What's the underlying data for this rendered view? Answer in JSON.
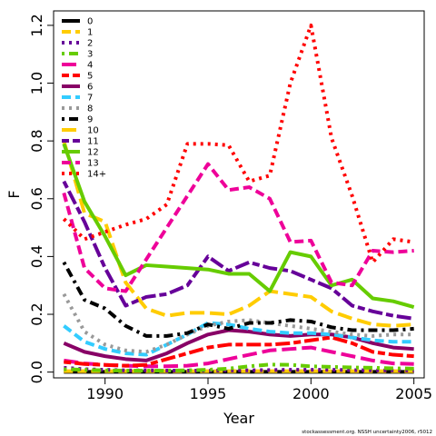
{
  "chart_data": {
    "type": "line",
    "xlabel": "Year",
    "ylabel": "F",
    "xlim": [
      1987.5,
      2005.5
    ],
    "ylim": [
      -0.02,
      1.25
    ],
    "xticks": [
      1990,
      1995,
      2000,
      2005
    ],
    "yticks": [
      0.0,
      0.2,
      0.4,
      0.6,
      0.8,
      1.0,
      1.2
    ],
    "ytick_labels": [
      "0.0",
      "0.2",
      "0.4",
      "0.6",
      "0.8",
      "1.0",
      "1.2"
    ],
    "legend_position": "top-left",
    "credit": "stockassessment.org. NSSH uncertainty2006, r5012",
    "x": [
      1988,
      1989,
      1990,
      1991,
      1992,
      1993,
      1994,
      1995,
      1996,
      1997,
      1998,
      1999,
      2000,
      2001,
      2002,
      2003,
      2004,
      2005
    ],
    "series": [
      {
        "name": "0",
        "color": "#000000",
        "dash": "solid",
        "values": [
          0.001,
          0.001,
          0.001,
          0.001,
          0.001,
          0.001,
          0.001,
          0.001,
          0.001,
          0.001,
          0.001,
          0.001,
          0.001,
          0.001,
          0.001,
          0.001,
          0.001,
          0.001
        ]
      },
      {
        "name": "1",
        "color": "#FFCC00",
        "dash": "dash",
        "values": [
          0.003,
          0.003,
          0.003,
          0.003,
          0.003,
          0.003,
          0.003,
          0.003,
          0.003,
          0.003,
          0.003,
          0.003,
          0.003,
          0.003,
          0.003,
          0.003,
          0.003,
          0.003
        ]
      },
      {
        "name": "2",
        "color": "#660099",
        "dash": "dot",
        "values": [
          0.015,
          0.01,
          0.008,
          0.006,
          0.006,
          0.005,
          0.005,
          0.005,
          0.006,
          0.006,
          0.007,
          0.008,
          0.008,
          0.008,
          0.007,
          0.006,
          0.006,
          0.006
        ]
      },
      {
        "name": "3",
        "color": "#66CC00",
        "dash": "dotdash",
        "values": [
          0.01,
          0.008,
          0.006,
          0.005,
          0.005,
          0.005,
          0.006,
          0.008,
          0.012,
          0.02,
          0.026,
          0.025,
          0.02,
          0.018,
          0.016,
          0.015,
          0.013,
          0.012
        ]
      },
      {
        "name": "4",
        "color": "#EE0099",
        "dash": "longdash",
        "values": [
          0.04,
          0.03,
          0.025,
          0.022,
          0.02,
          0.02,
          0.022,
          0.03,
          0.045,
          0.06,
          0.075,
          0.08,
          0.085,
          0.07,
          0.055,
          0.04,
          0.03,
          0.028
        ]
      },
      {
        "name": "5",
        "color": "#FF0000",
        "dash": "twodash",
        "values": [
          0.035,
          0.028,
          0.025,
          0.022,
          0.025,
          0.045,
          0.065,
          0.085,
          0.095,
          0.095,
          0.095,
          0.1,
          0.11,
          0.12,
          0.1,
          0.07,
          0.06,
          0.055
        ]
      },
      {
        "name": "6",
        "color": "#880066",
        "dash": "solid",
        "values": [
          0.1,
          0.07,
          0.055,
          0.045,
          0.04,
          0.065,
          0.1,
          0.13,
          0.145,
          0.14,
          0.13,
          0.125,
          0.13,
          0.13,
          0.12,
          0.1,
          0.085,
          0.08
        ]
      },
      {
        "name": "7",
        "color": "#33CCFF",
        "dash": "dash",
        "values": [
          0.16,
          0.105,
          0.08,
          0.065,
          0.06,
          0.095,
          0.13,
          0.17,
          0.165,
          0.15,
          0.14,
          0.135,
          0.135,
          0.13,
          0.12,
          0.11,
          0.105,
          0.105
        ]
      },
      {
        "name": "8",
        "color": "#999999",
        "dash": "dot",
        "values": [
          0.27,
          0.14,
          0.095,
          0.075,
          0.07,
          0.095,
          0.13,
          0.16,
          0.175,
          0.18,
          0.17,
          0.16,
          0.15,
          0.14,
          0.13,
          0.125,
          0.13,
          0.13
        ]
      },
      {
        "name": "9",
        "color": "#000000",
        "dash": "dotdash",
        "values": [
          0.38,
          0.25,
          0.22,
          0.16,
          0.125,
          0.125,
          0.135,
          0.165,
          0.15,
          0.17,
          0.17,
          0.18,
          0.175,
          0.155,
          0.145,
          0.145,
          0.145,
          0.15
        ]
      },
      {
        "name": "10",
        "color": "#FFCC00",
        "dash": "longdash",
        "values": [
          0.8,
          0.55,
          0.52,
          0.31,
          0.22,
          0.195,
          0.205,
          0.205,
          0.2,
          0.23,
          0.28,
          0.27,
          0.26,
          0.21,
          0.185,
          0.165,
          0.16,
          0.165
        ]
      },
      {
        "name": "11",
        "color": "#660099",
        "dash": "twodash",
        "values": [
          0.66,
          0.52,
          0.36,
          0.23,
          0.26,
          0.27,
          0.3,
          0.4,
          0.35,
          0.38,
          0.36,
          0.35,
          0.32,
          0.29,
          0.23,
          0.21,
          0.195,
          0.185
        ]
      },
      {
        "name": "12",
        "color": "#66CC00",
        "dash": "solid",
        "values": [
          0.79,
          0.59,
          0.47,
          0.335,
          0.37,
          0.365,
          0.36,
          0.355,
          0.34,
          0.34,
          0.28,
          0.415,
          0.4,
          0.3,
          0.32,
          0.255,
          0.245,
          0.225
        ]
      },
      {
        "name": "13",
        "color": "#EE0099",
        "dash": "dash",
        "values": [
          0.62,
          0.36,
          0.29,
          0.28,
          0.39,
          0.5,
          0.61,
          0.72,
          0.63,
          0.64,
          0.6,
          0.45,
          0.455,
          0.31,
          0.3,
          0.42,
          0.415,
          0.42
        ]
      },
      {
        "name": "14+",
        "color": "#FF0000",
        "dash": "dot",
        "values": [
          0.53,
          0.46,
          0.485,
          0.51,
          0.53,
          0.58,
          0.79,
          0.79,
          0.785,
          0.66,
          0.68,
          1.0,
          1.2,
          0.81,
          0.61,
          0.38,
          0.46,
          0.45
        ]
      }
    ]
  }
}
